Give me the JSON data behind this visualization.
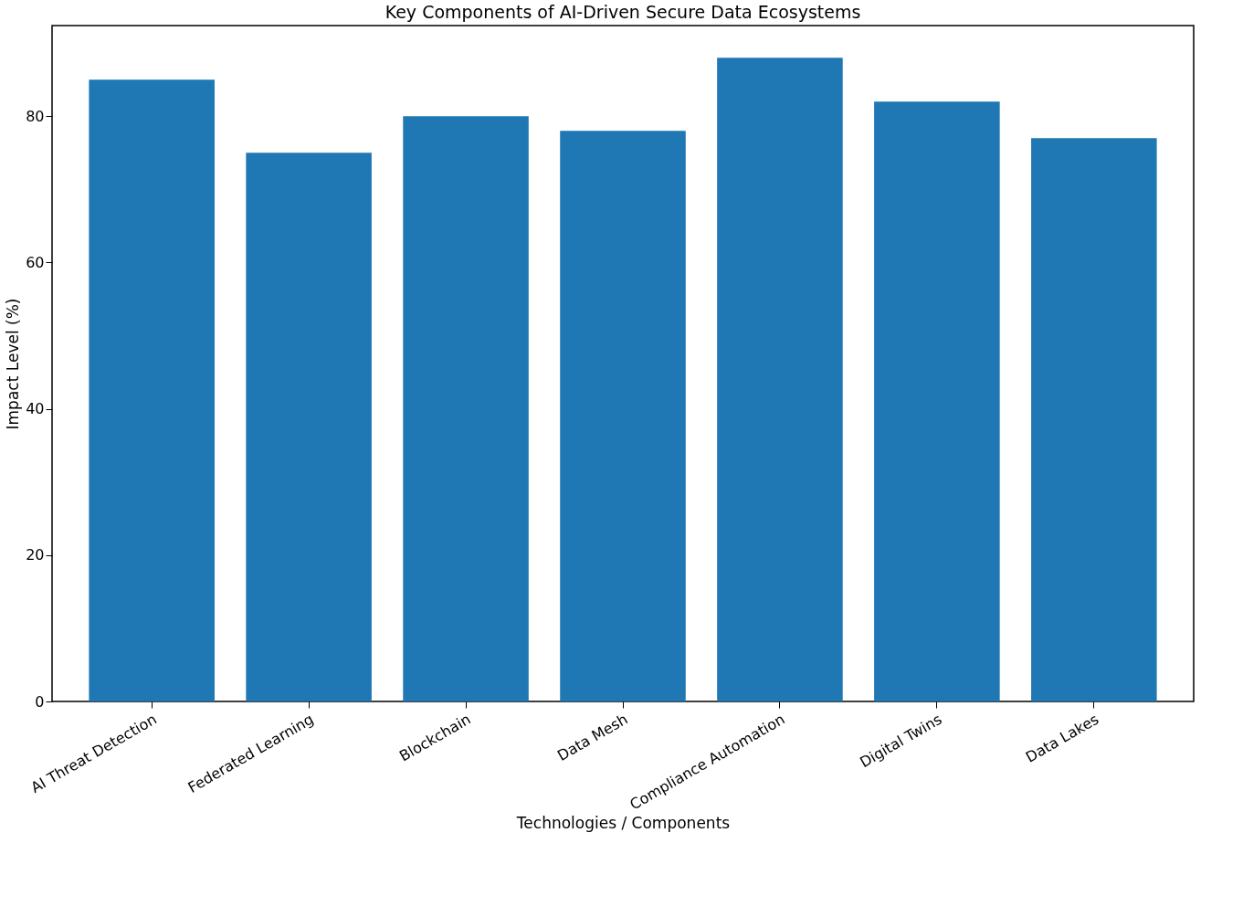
{
  "chart_data": {
    "type": "bar",
    "title": "Key Components of AI-Driven Secure Data Ecosystems",
    "xlabel": "Technologies / Components",
    "ylabel": "Impact Level (%)",
    "categories": [
      "AI Threat Detection",
      "Federated Learning",
      "Blockchain",
      "Data Mesh",
      "Compliance Automation",
      "Digital Twins",
      "Data Lakes"
    ],
    "values": [
      85,
      75,
      80,
      78,
      88,
      82,
      77
    ],
    "color": "#1f77b4",
    "ylim": [
      0,
      92.4
    ],
    "yticks": [
      0,
      20,
      40,
      60,
      80
    ],
    "grid": false
  }
}
